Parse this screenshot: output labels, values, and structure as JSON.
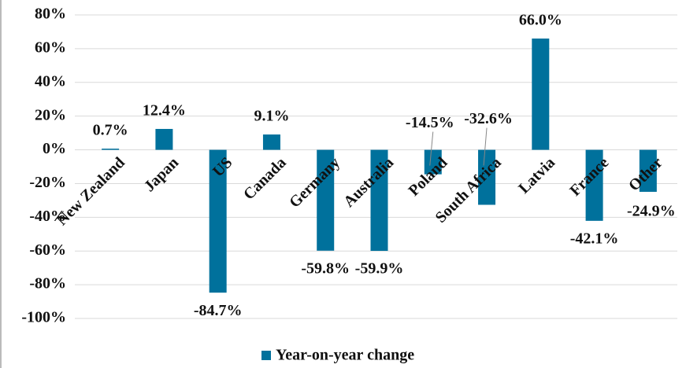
{
  "chart_data": {
    "type": "bar",
    "categories": [
      "New Zealand",
      "Japan",
      "US",
      "Canada",
      "Germany",
      "Australia",
      "Poland",
      "South Africa",
      "Latvia",
      "France",
      "Other"
    ],
    "series": [
      {
        "name": "Year-on-year change",
        "color": "#00719c",
        "values": [
          0.7,
          12.4,
          -84.7,
          9.1,
          -59.8,
          -59.9,
          -14.5,
          -32.6,
          66.0,
          -42.1,
          -24.9
        ],
        "value_labels": [
          "0.7%",
          "12.4%",
          "-84.7%",
          "9.1%",
          "-59.8%",
          "-59.9%",
          "-14.5%",
          "-32.6%",
          "66.0%",
          "-42.1%",
          "-24.9%"
        ]
      }
    ],
    "ylim": [
      -100,
      80
    ],
    "yticks": [
      {
        "value": -100,
        "label": "-100%"
      },
      {
        "value": -80,
        "label": "-80%"
      },
      {
        "value": -60,
        "label": "-60%"
      },
      {
        "value": -40,
        "label": "-40%"
      },
      {
        "value": -20,
        "label": "-20%"
      },
      {
        "value": 0,
        "label": "0%"
      },
      {
        "value": 20,
        "label": "20%"
      },
      {
        "value": 40,
        "label": "40%"
      },
      {
        "value": 60,
        "label": "60%"
      },
      {
        "value": 80,
        "label": "80%"
      }
    ],
    "grid": true,
    "legend": "bottom"
  }
}
